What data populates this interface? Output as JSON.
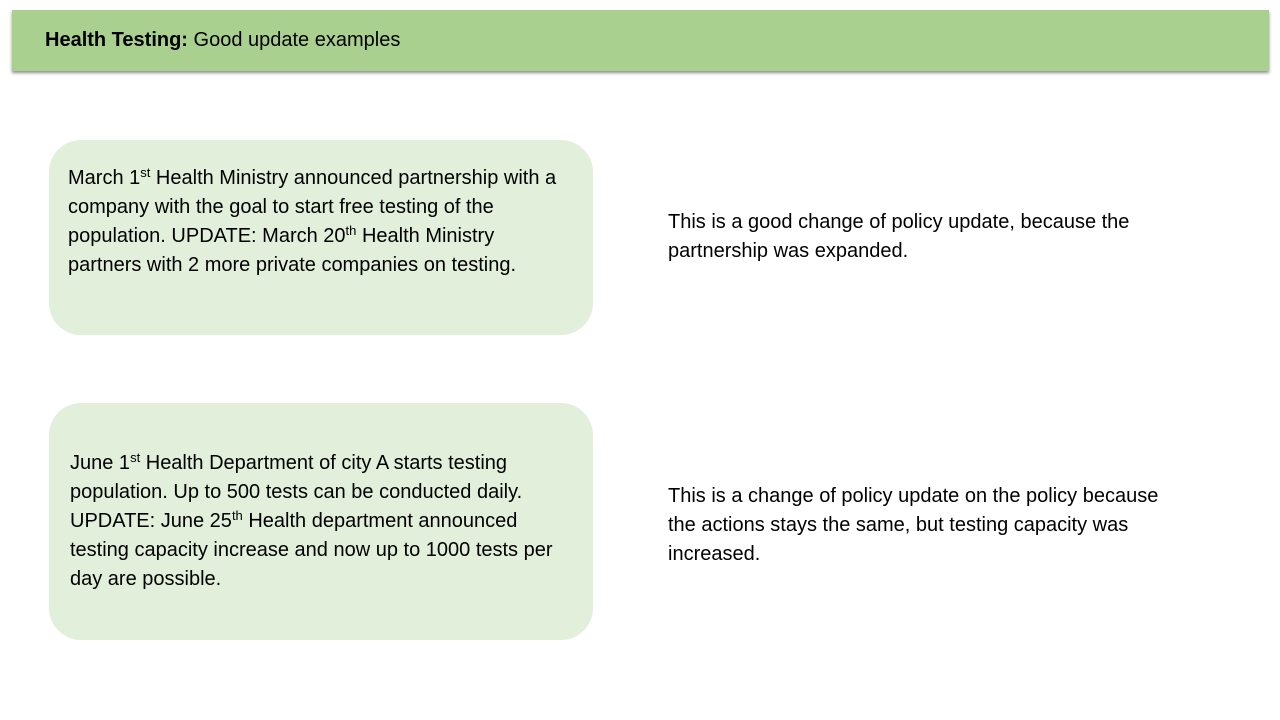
{
  "header": {
    "title_bold": "Health Testing:",
    "title_rest": " Good update examples"
  },
  "examples": [
    {
      "card": {
        "p1": "March 1",
        "s1": "st",
        "p2": " Health Ministry announced partnership with a company with the goal to start free testing of the population. UPDATE:  March 20",
        "s2": "th",
        "p3": " Health Ministry partners with 2 more private companies on testing."
      },
      "note": "This is a good change of policy update, because the partnership was expanded."
    },
    {
      "card": {
        "p1": "June 1",
        "s1": "st",
        "p2": " Health Department of city A starts testing population. Up to 500 tests can be conducted daily. UPDATE: June 25",
        "s2": "th",
        "p3": " Health department announced testing capacity increase and now up to 1000 tests per day are possible."
      },
      "note": "This is a change of policy update on the policy because the actions stays the same, but testing capacity was increased."
    }
  ]
}
